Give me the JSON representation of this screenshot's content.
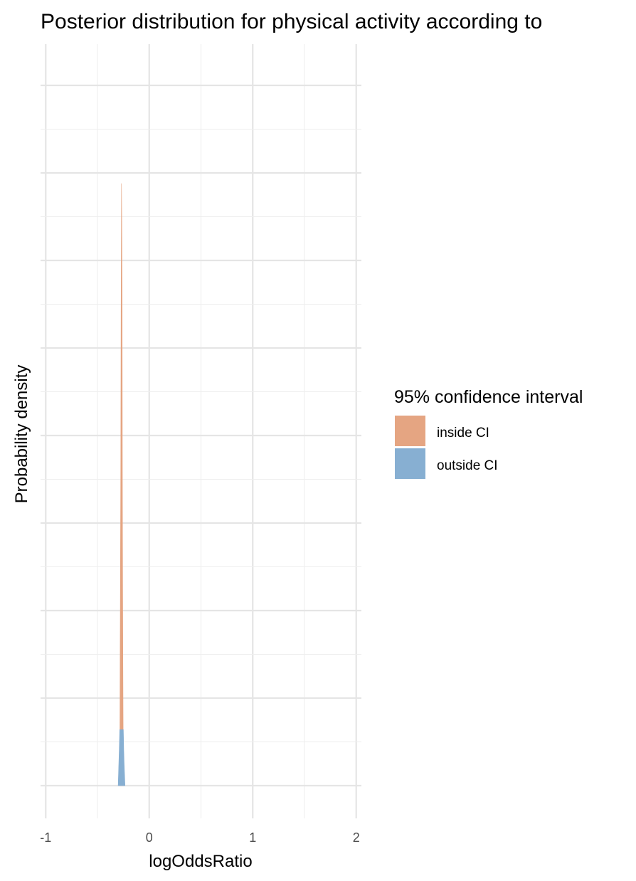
{
  "chart_data": {
    "type": "area",
    "title": "Posterior distribution for physical activity according to",
    "xlabel": "logOddsRatio",
    "ylabel": "Probability density",
    "xlim": [
      -1.05,
      2.05
    ],
    "x_ticks": [
      -1,
      0,
      1,
      2
    ],
    "x_tick_labels": [
      "-1",
      "0",
      "1",
      "2"
    ],
    "y_tick_labels_shown": false,
    "grid": true,
    "legend": {
      "title": "95% confidence interval",
      "placement": "right",
      "entries": [
        {
          "label": "inside CI",
          "color": "#E5A582"
        },
        {
          "label": "outside CI",
          "color": "#87AFD2"
        }
      ]
    },
    "series": [
      {
        "name": "inside CI",
        "color": "#E5A582",
        "x": [
          -0.285,
          -0.28,
          -0.275,
          -0.272,
          -0.268,
          -0.265,
          -0.262,
          -0.259,
          -0.255,
          -0.25
        ],
        "density": [
          0.0,
          0.23,
          0.45,
          0.68,
          0.86,
          0.8,
          0.68,
          0.4,
          0.2,
          0.0
        ]
      },
      {
        "name": "outside CI",
        "color": "#87AFD2",
        "x": [
          -0.3,
          -0.296,
          -0.292,
          -0.288,
          -0.285,
          -0.25,
          -0.246,
          -0.242,
          -0.238,
          -0.234
        ],
        "density": [
          0.0,
          0.02,
          0.04,
          0.06,
          0.08,
          0.08,
          0.05,
          0.03,
          0.015,
          0.0
        ]
      }
    ]
  }
}
